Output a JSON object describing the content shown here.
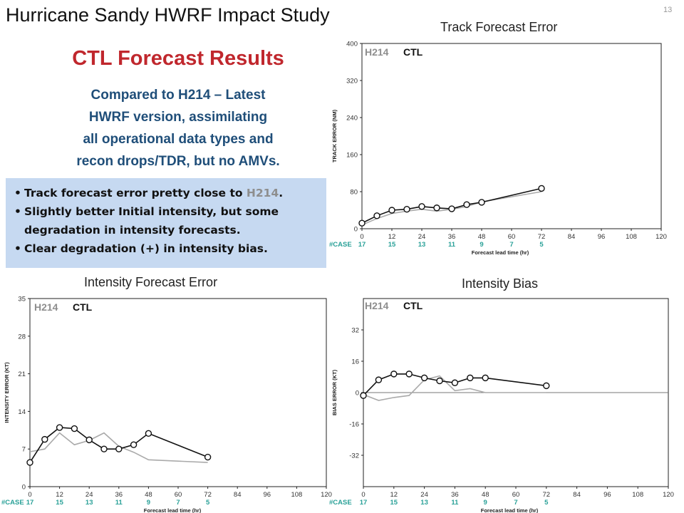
{
  "slide": {
    "title": "Hurricane Sandy HWRF Impact Study",
    "number": "13",
    "subtitle": "CTL Forecast Results",
    "description": [
      "Compared to H214 – Latest",
      "HWRF version, assimilating",
      "all operational data types and",
      "recon drops/TDR, but no AMVs."
    ],
    "bullets": {
      "b1_pre": "Track forecast error pretty close to ",
      "b1_gray": "H214",
      "b1_post": ".",
      "b2a": "Slightly better Initial intensity, but some",
      "b2b": "degradation in intensity forecasts.",
      "b3": "Clear degradation (+) in intensity bias."
    }
  },
  "chart_data": [
    {
      "id": "track",
      "type": "line",
      "title": "Track Forecast Error",
      "xlabel": "Forecast lead time (hr)",
      "ylabel": "TRACK ERROR (NM)",
      "xlim": [
        0,
        120
      ],
      "ylim": [
        0,
        400
      ],
      "xticks": [
        0,
        12,
        24,
        36,
        48,
        60,
        72,
        84,
        96,
        108,
        120
      ],
      "yticks": [
        0,
        80,
        160,
        240,
        320,
        400
      ],
      "ytick_labels": [
        "0",
        "80",
        "160",
        "240",
        "320",
        "400"
      ],
      "case_label": "#CASE",
      "cases": [
        {
          "x": 0,
          "n": "17"
        },
        {
          "x": 12,
          "n": "15"
        },
        {
          "x": 24,
          "n": "13"
        },
        {
          "x": 36,
          "n": "11"
        },
        {
          "x": 48,
          "n": "9"
        },
        {
          "x": 60,
          "n": "7"
        },
        {
          "x": 72,
          "n": "5"
        }
      ],
      "legend": [
        {
          "name": "H214",
          "color": "#8e8e8e"
        },
        {
          "name": "CTL",
          "color": "#111111"
        }
      ],
      "series": [
        {
          "name": "H214",
          "color": "#aaaaaa",
          "markers": false,
          "x": [
            0,
            6,
            12,
            18,
            24,
            30,
            36,
            42,
            48,
            72
          ],
          "y": [
            8,
            22,
            33,
            38,
            42,
            38,
            42,
            48,
            58,
            80
          ]
        },
        {
          "name": "CTL",
          "color": "#111111",
          "markers": true,
          "x": [
            0,
            6,
            12,
            18,
            24,
            30,
            36,
            42,
            48,
            72
          ],
          "y": [
            12,
            28,
            40,
            42,
            48,
            45,
            43,
            52,
            57,
            87
          ]
        }
      ]
    },
    {
      "id": "intensity",
      "type": "line",
      "title": "Intensity Forecast Error",
      "xlabel": "Forecast lead time (hr)",
      "ylabel": "INTENSITY ERROR (KT)",
      "xlim": [
        0,
        120
      ],
      "ylim": [
        0,
        35
      ],
      "xticks": [
        0,
        12,
        24,
        36,
        48,
        60,
        72,
        84,
        96,
        108,
        120
      ],
      "yticks": [
        0,
        7,
        14,
        21,
        28,
        35
      ],
      "ytick_labels": [
        "0",
        "7",
        "14",
        "21",
        "28",
        "35"
      ],
      "case_label": "#CASE",
      "cases": [
        {
          "x": 0,
          "n": "17"
        },
        {
          "x": 12,
          "n": "15"
        },
        {
          "x": 24,
          "n": "13"
        },
        {
          "x": 36,
          "n": "11"
        },
        {
          "x": 48,
          "n": "9"
        },
        {
          "x": 60,
          "n": "7"
        },
        {
          "x": 72,
          "n": "5"
        }
      ],
      "legend": [
        {
          "name": "H214",
          "color": "#8e8e8e"
        },
        {
          "name": "CTL",
          "color": "#111111"
        }
      ],
      "series": [
        {
          "name": "H214",
          "color": "#aaaaaa",
          "markers": false,
          "x": [
            0,
            6,
            12,
            18,
            24,
            30,
            36,
            42,
            48,
            72
          ],
          "y": [
            6.5,
            7,
            10,
            7.8,
            8.6,
            10,
            7.5,
            6.4,
            5,
            4.5
          ]
        },
        {
          "name": "CTL",
          "color": "#111111",
          "markers": true,
          "x": [
            0,
            6,
            12,
            18,
            24,
            30,
            36,
            42,
            48,
            72
          ],
          "y": [
            4.5,
            8.8,
            11,
            10.8,
            8.7,
            7,
            7,
            7.8,
            9.9,
            5.5
          ]
        }
      ]
    },
    {
      "id": "bias",
      "type": "line",
      "title": "Intensity Bias",
      "xlabel": "Forecast lead time (hr)",
      "ylabel": "BIAS ERROR (KT)",
      "xlim": [
        0,
        120
      ],
      "ylim": [
        -48,
        48
      ],
      "xticks": [
        0,
        12,
        24,
        36,
        48,
        60,
        72,
        84,
        96,
        108,
        120
      ],
      "yticks": [
        -32,
        -16,
        0,
        16,
        32
      ],
      "ytick_labels": [
        "-32",
        "-16",
        "0",
        "16",
        "32"
      ],
      "zero_line": true,
      "case_label": "#CASE",
      "cases": [
        {
          "x": 0,
          "n": "17"
        },
        {
          "x": 12,
          "n": "15"
        },
        {
          "x": 24,
          "n": "13"
        },
        {
          "x": 36,
          "n": "11"
        },
        {
          "x": 48,
          "n": "9"
        },
        {
          "x": 60,
          "n": "7"
        },
        {
          "x": 72,
          "n": "5"
        }
      ],
      "legend": [
        {
          "name": "H214",
          "color": "#8e8e8e"
        },
        {
          "name": "CTL",
          "color": "#111111"
        }
      ],
      "series": [
        {
          "name": "H214",
          "color": "#aaaaaa",
          "markers": false,
          "x": [
            0,
            6,
            12,
            18,
            24,
            30,
            36,
            42,
            48,
            72
          ],
          "y": [
            -1,
            -4,
            -2.5,
            -1.5,
            6.5,
            8.5,
            1,
            2,
            0,
            0
          ]
        },
        {
          "name": "CTL",
          "color": "#111111",
          "markers": true,
          "x": [
            0,
            6,
            12,
            18,
            24,
            30,
            36,
            42,
            48,
            72
          ],
          "y": [
            -1.5,
            6.5,
            9.5,
            9.5,
            7.5,
            6,
            5,
            7.5,
            7.5,
            3.5
          ]
        }
      ]
    }
  ]
}
